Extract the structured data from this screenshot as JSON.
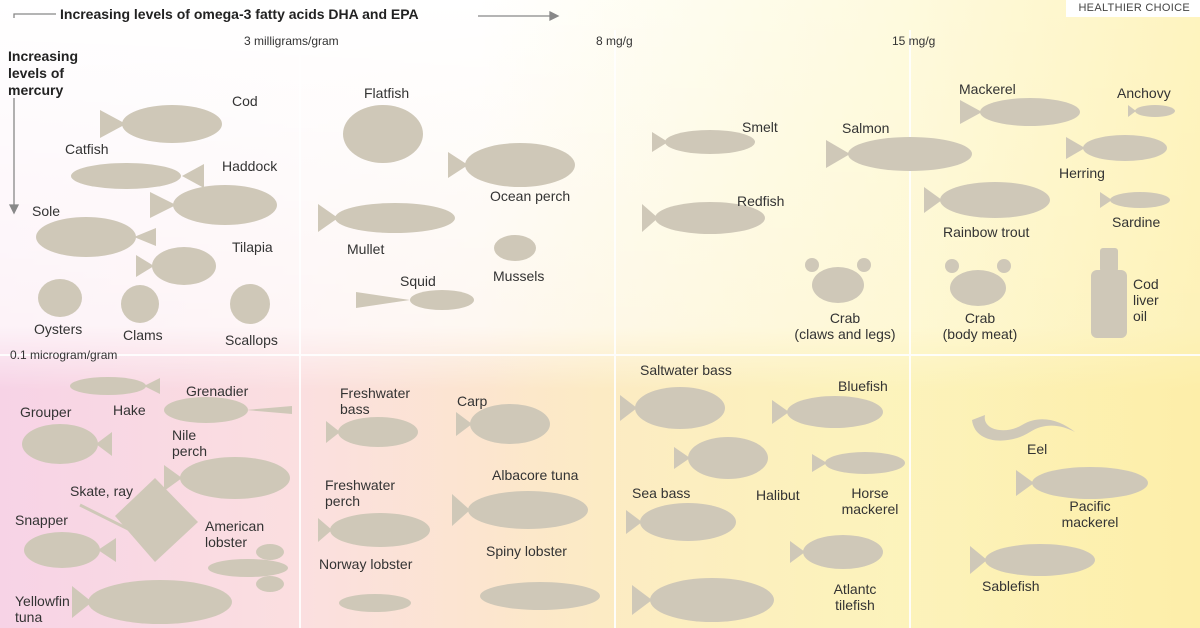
{
  "header": {
    "x_axis_title": "Increasing levels of omega-3 fatty acids DHA and EPA",
    "y_axis_title": "Increasing\nlevels of\nmercury",
    "badge": "HEALTHIER CHOICE"
  },
  "ticks": {
    "x": [
      "3 milligrams/gram",
      "8 mg/g",
      "15 mg/g"
    ],
    "y": [
      "0.1 microgram/gram"
    ]
  },
  "colors": {
    "shape": "#cfc8b8",
    "divider": "#ffffff",
    "arrow": "#888888",
    "low_mercury_bg": "#ffffff",
    "high_mercury_low_omega_bg": "#f7d3e6",
    "high_omega_bg": "#fde9a6"
  },
  "labels": {
    "cod": "Cod",
    "catfish": "Catfish",
    "haddock": "Haddock",
    "sole": "Sole",
    "tilapia": "Tilapia",
    "oysters": "Oysters",
    "clams": "Clams",
    "scallops": "Scallops",
    "flatfish": "Flatfish",
    "ocean_perch": "Ocean perch",
    "mullet": "Mullet",
    "squid": "Squid",
    "mussels": "Mussels",
    "smelt": "Smelt",
    "salmon": "Salmon",
    "redfish": "Redfish",
    "crab_claws": "Crab\n(claws and legs)",
    "mackerel": "Mackerel",
    "anchovy": "Anchovy",
    "herring": "Herring",
    "rainbow_trout": "Rainbow trout",
    "sardine": "Sardine",
    "crab_body": "Crab\n(body meat)",
    "cod_liver_oil": "Cod\nliver\noil",
    "grouper": "Grouper",
    "hake": "Hake",
    "grenadier": "Grenadier",
    "nile_perch": "Nile\nperch",
    "skate_ray": "Skate, ray",
    "snapper": "Snapper",
    "american_lobster": "American\nlobster",
    "yellowfin_tuna": "Yellowfin\ntuna",
    "freshwater_bass": "Freshwater\nbass",
    "carp": "Carp",
    "freshwater_perch": "Freshwater\nperch",
    "albacore_tuna": "Albacore tuna",
    "norway_lobster": "Norway lobster",
    "spiny_lobster": "Spiny lobster",
    "saltwater_bass": "Saltwater bass",
    "bluefish": "Bluefish",
    "sea_bass": "Sea bass",
    "halibut": "Halibut",
    "horse_mackerel": "Horse\nmackerel",
    "atlantic_tilefish": "Atlantc\ntilefish",
    "eel": "Eel",
    "pacific_mackerel": "Pacific\nmackerel",
    "sablefish": "Sablefish"
  }
}
